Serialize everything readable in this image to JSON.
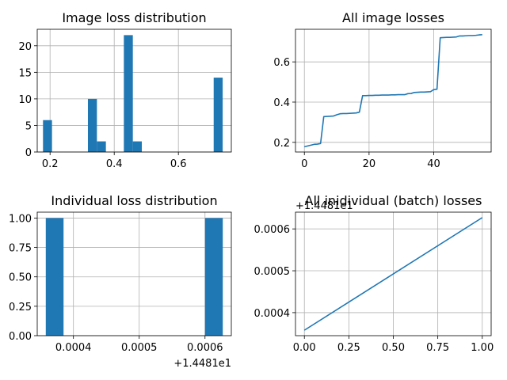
{
  "chart_data": [
    {
      "type": "bar",
      "title": "Image loss distribution",
      "xlabel": "",
      "ylabel": "",
      "xlim": [
        0.16,
        0.765
      ],
      "ylim": [
        0,
        23.1
      ],
      "xticks": [
        0.2,
        0.4,
        0.6
      ],
      "xtick_labels": [
        "0.2",
        "0.4",
        "0.6"
      ],
      "yticks": [
        0,
        5,
        10,
        15,
        20
      ],
      "ytick_labels": [
        "0",
        "5",
        "10",
        "15",
        "20"
      ],
      "grid": true,
      "bars": [
        {
          "x0": 0.178,
          "x1": 0.206,
          "value": 6
        },
        {
          "x0": 0.318,
          "x1": 0.346,
          "value": 10
        },
        {
          "x0": 0.346,
          "x1": 0.374,
          "value": 2
        },
        {
          "x0": 0.43,
          "x1": 0.458,
          "value": 22
        },
        {
          "x0": 0.458,
          "x1": 0.486,
          "value": 2
        },
        {
          "x0": 0.71,
          "x1": 0.738,
          "value": 14
        }
      ],
      "color": "#1f77b4"
    },
    {
      "type": "line",
      "title": "All image losses",
      "xlabel": "",
      "ylabel": "",
      "xlim": [
        -2.75,
        57.75
      ],
      "ylim": [
        0.152,
        0.762
      ],
      "xticks": [
        0,
        20,
        40
      ],
      "xtick_labels": [
        "0",
        "20",
        "40"
      ],
      "yticks": [
        0.2,
        0.4,
        0.6
      ],
      "ytick_labels": [
        "0.2",
        "0.4",
        "0.6"
      ],
      "grid": true,
      "series": [
        {
          "x": [
            0,
            1,
            2,
            3,
            4,
            5,
            6,
            7,
            8,
            9,
            10,
            11,
            12,
            13,
            14,
            15,
            16,
            17,
            18,
            19,
            20,
            21,
            22,
            23,
            24,
            25,
            26,
            27,
            28,
            29,
            30,
            31,
            32,
            33,
            34,
            35,
            36,
            37,
            38,
            39,
            40,
            41,
            42,
            43,
            44,
            45,
            46,
            47,
            48,
            49,
            50,
            51,
            52,
            53,
            54,
            55
          ],
          "values": [
            0.178,
            0.182,
            0.186,
            0.19,
            0.191,
            0.194,
            0.328,
            0.329,
            0.33,
            0.331,
            0.337,
            0.342,
            0.343,
            0.343,
            0.344,
            0.345,
            0.346,
            0.35,
            0.432,
            0.432,
            0.433,
            0.433,
            0.434,
            0.434,
            0.435,
            0.435,
            0.435,
            0.436,
            0.436,
            0.437,
            0.437,
            0.437,
            0.442,
            0.443,
            0.448,
            0.449,
            0.45,
            0.45,
            0.451,
            0.452,
            0.462,
            0.464,
            0.72,
            0.721,
            0.722,
            0.722,
            0.723,
            0.724,
            0.729,
            0.729,
            0.73,
            0.731,
            0.731,
            0.732,
            0.734,
            0.735
          ]
        }
      ],
      "color": "#1f77b4"
    },
    {
      "type": "bar",
      "title": "Individual loss distribution",
      "xlabel": "",
      "ylabel": "",
      "offset_label": "+1.4481e1",
      "xlim": [
        0.000345,
        0.00064
      ],
      "ylim": [
        0,
        1.05
      ],
      "xticks": [
        0.0004,
        0.0005,
        0.0006
      ],
      "xtick_labels": [
        "0.0004",
        "0.0005",
        "0.0006"
      ],
      "yticks": [
        0,
        0.25,
        0.5,
        0.75,
        1.0
      ],
      "ytick_labels": [
        "0.00",
        "0.25",
        "0.50",
        "0.75",
        "1.00"
      ],
      "grid": true,
      "bars": [
        {
          "x0": 0.000358,
          "x1": 0.000385,
          "value": 1
        },
        {
          "x0": 0.0006,
          "x1": 0.000627,
          "value": 1
        }
      ],
      "color": "#1f77b4"
    },
    {
      "type": "line",
      "title": "All inidividual (batch) losses",
      "xlabel": "",
      "ylabel": "",
      "offset_label": "+1.4481e1",
      "xlim": [
        -0.05,
        1.05
      ],
      "ylim": [
        0.000345,
        0.00064
      ],
      "xticks": [
        0,
        0.25,
        0.5,
        0.75,
        1.0
      ],
      "xtick_labels": [
        "0.00",
        "0.25",
        "0.50",
        "0.75",
        "1.00"
      ],
      "yticks": [
        0.0004,
        0.0005,
        0.0006
      ],
      "ytick_labels": [
        "0.0004",
        "0.0005",
        "0.0006"
      ],
      "grid": true,
      "series": [
        {
          "x": [
            0,
            1
          ],
          "values": [
            0.000358,
            0.000627
          ]
        }
      ],
      "color": "#1f77b4"
    }
  ]
}
